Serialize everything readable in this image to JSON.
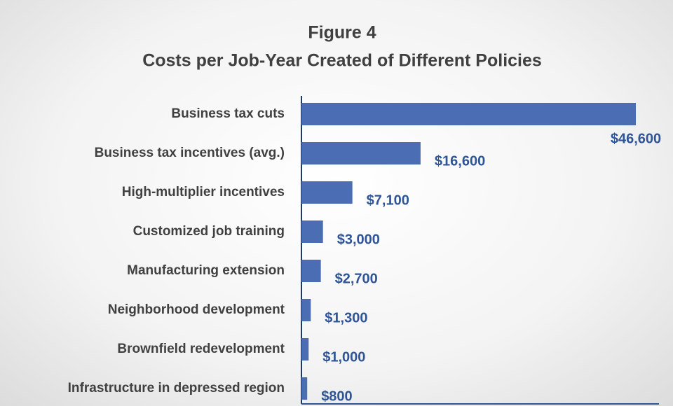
{
  "chart_data": {
    "type": "bar",
    "orientation": "horizontal",
    "title": "Figure 4",
    "subtitle": "Costs per Job-Year Created of Different Policies",
    "categories": [
      "Business tax cuts",
      "Business tax incentives (avg.)",
      "High-multiplier incentives",
      "Customized job training",
      "Manufacturing extension",
      "Neighborhood development",
      "Brownfield redevelopment",
      "Infrastructure in depressed region"
    ],
    "values": [
      46600,
      16600,
      7100,
      3000,
      2700,
      1300,
      1000,
      800
    ],
    "value_labels": [
      "$46,600",
      "$16,600",
      "$7,100",
      "$3,000",
      "$2,700",
      "$1,300",
      "$1,000",
      "$800"
    ],
    "color": "#4a6db3"
  }
}
